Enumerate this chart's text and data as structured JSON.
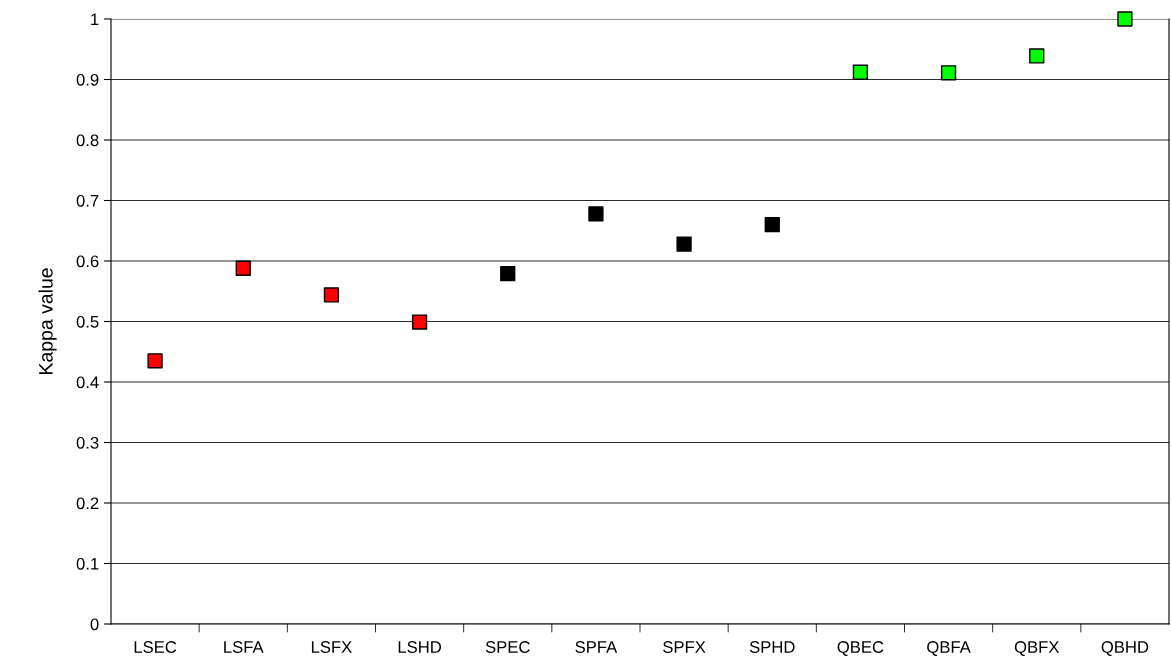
{
  "chart_data": {
    "type": "scatter",
    "ylabel": "Kappa value",
    "categories": [
      "LSEC",
      "LSFA",
      "LSFX",
      "LSHD",
      "SPEC",
      "SPFA",
      "SPFX",
      "SPHD",
      "QBEC",
      "QBFA",
      "QBFX",
      "QBHD"
    ],
    "series": [
      {
        "values": [
          0.435,
          0.588,
          0.544,
          0.499,
          0.579,
          0.678,
          0.628,
          0.66,
          0.912,
          0.911,
          0.939,
          1.0
        ],
        "colors": [
          "#ff0000",
          "#ff0000",
          "#ff0000",
          "#ff0000",
          "#000000",
          "#000000",
          "#000000",
          "#000000",
          "#00ff00",
          "#00ff00",
          "#00ff00",
          "#00ff00"
        ]
      }
    ],
    "ylim": [
      0,
      1
    ],
    "yticks": [
      0,
      0.1,
      0.2,
      0.3,
      0.4,
      0.5,
      0.6,
      0.7,
      0.8,
      0.9,
      1
    ],
    "grid": "y",
    "marker": "square"
  }
}
